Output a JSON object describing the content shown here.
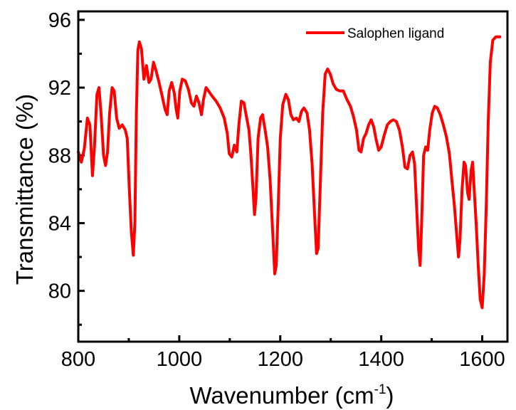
{
  "chart_data": {
    "type": "line",
    "title": "",
    "xlabel": "Wavenumber (cm",
    "xlabel_sup": "-1",
    "xlabel_close": ")",
    "ylabel": "Transmittance (%)",
    "xlim": [
      800,
      1650
    ],
    "ylim": [
      77,
      96.5
    ],
    "x_ticks": [
      800,
      1000,
      1200,
      1400,
      1600
    ],
    "y_ticks": [
      80,
      84,
      88,
      92,
      96
    ],
    "x_tick_labels": [
      "800",
      "1000",
      "1200",
      "1400",
      "1600"
    ],
    "y_tick_labels": [
      "80",
      "84",
      "88",
      "92",
      "96"
    ],
    "grid": false,
    "legend_position": "top-right",
    "series": [
      {
        "name": "Salophen ligand",
        "color": "#ff0000",
        "points": [
          [
            800,
            88.2
          ],
          [
            806,
            87.6
          ],
          [
            812,
            88.4
          ],
          [
            818,
            90.2
          ],
          [
            823,
            89.8
          ],
          [
            828,
            86.8
          ],
          [
            832,
            88.5
          ],
          [
            837,
            91.6
          ],
          [
            841,
            92.0
          ],
          [
            845,
            90.5
          ],
          [
            850,
            88.0
          ],
          [
            854,
            87.4
          ],
          [
            858,
            88.2
          ],
          [
            862,
            90.5
          ],
          [
            867,
            92.0
          ],
          [
            871,
            91.8
          ],
          [
            876,
            90.2
          ],
          [
            881,
            89.6
          ],
          [
            887,
            89.8
          ],
          [
            893,
            89.5
          ],
          [
            897,
            89.0
          ],
          [
            901,
            86.0
          ],
          [
            905,
            83.5
          ],
          [
            909,
            82.1
          ],
          [
            912,
            84.0
          ],
          [
            915,
            90.5
          ],
          [
            918,
            94.2
          ],
          [
            921,
            94.7
          ],
          [
            925,
            94.3
          ],
          [
            930,
            92.5
          ],
          [
            935,
            93.3
          ],
          [
            940,
            92.3
          ],
          [
            944,
            92.5
          ],
          [
            949,
            93.5
          ],
          [
            954,
            93.0
          ],
          [
            960,
            92.3
          ],
          [
            966,
            91.5
          ],
          [
            972,
            90.7
          ],
          [
            976,
            90.4
          ],
          [
            980,
            91.8
          ],
          [
            985,
            92.3
          ],
          [
            990,
            91.7
          ],
          [
            994,
            90.7
          ],
          [
            997,
            90.2
          ],
          [
            1001,
            91.8
          ],
          [
            1006,
            92.5
          ],
          [
            1012,
            92.4
          ],
          [
            1018,
            91.9
          ],
          [
            1024,
            91.1
          ],
          [
            1029,
            90.9
          ],
          [
            1034,
            91.5
          ],
          [
            1039,
            91.1
          ],
          [
            1044,
            90.4
          ],
          [
            1048,
            91.3
          ],
          [
            1053,
            92.0
          ],
          [
            1058,
            91.8
          ],
          [
            1065,
            91.5
          ],
          [
            1073,
            91.2
          ],
          [
            1081,
            90.8
          ],
          [
            1089,
            90.2
          ],
          [
            1095,
            89.3
          ],
          [
            1099,
            88.1
          ],
          [
            1104,
            87.9
          ],
          [
            1109,
            88.6
          ],
          [
            1114,
            88.2
          ],
          [
            1118,
            89.8
          ],
          [
            1123,
            91.2
          ],
          [
            1128,
            91.1
          ],
          [
            1133,
            90.3
          ],
          [
            1138,
            89.5
          ],
          [
            1142,
            88.0
          ],
          [
            1146,
            86.0
          ],
          [
            1149,
            84.5
          ],
          [
            1152,
            85.5
          ],
          [
            1156,
            89.0
          ],
          [
            1161,
            90.2
          ],
          [
            1165,
            90.4
          ],
          [
            1170,
            89.5
          ],
          [
            1175,
            88.5
          ],
          [
            1180,
            86.5
          ],
          [
            1185,
            83.5
          ],
          [
            1189,
            81.0
          ],
          [
            1192,
            81.5
          ],
          [
            1196,
            85.0
          ],
          [
            1200,
            89.0
          ],
          [
            1205,
            91.0
          ],
          [
            1211,
            91.6
          ],
          [
            1216,
            91.3
          ],
          [
            1221,
            90.4
          ],
          [
            1226,
            90.1
          ],
          [
            1232,
            90.2
          ],
          [
            1237,
            90.0
          ],
          [
            1242,
            90.6
          ],
          [
            1247,
            90.8
          ],
          [
            1253,
            90.5
          ],
          [
            1258,
            89.5
          ],
          [
            1263,
            87.5
          ],
          [
            1268,
            84.5
          ],
          [
            1272,
            82.2
          ],
          [
            1275,
            82.5
          ],
          [
            1279,
            86.0
          ],
          [
            1284,
            90.5
          ],
          [
            1289,
            92.8
          ],
          [
            1294,
            93.1
          ],
          [
            1299,
            92.8
          ],
          [
            1305,
            92.2
          ],
          [
            1311,
            91.9
          ],
          [
            1318,
            91.8
          ],
          [
            1325,
            91.8
          ],
          [
            1332,
            91.3
          ],
          [
            1339,
            90.9
          ],
          [
            1345,
            90.3
          ],
          [
            1351,
            89.5
          ],
          [
            1356,
            88.3
          ],
          [
            1360,
            88.2
          ],
          [
            1365,
            89.0
          ],
          [
            1370,
            89.3
          ],
          [
            1375,
            89.8
          ],
          [
            1380,
            90.1
          ],
          [
            1385,
            89.7
          ],
          [
            1390,
            88.9
          ],
          [
            1395,
            88.3
          ],
          [
            1400,
            88.5
          ],
          [
            1406,
            89.2
          ],
          [
            1412,
            89.8
          ],
          [
            1418,
            90.0
          ],
          [
            1424,
            90.1
          ],
          [
            1430,
            90.0
          ],
          [
            1436,
            89.5
          ],
          [
            1442,
            88.5
          ],
          [
            1447,
            87.3
          ],
          [
            1452,
            87.2
          ],
          [
            1457,
            88.0
          ],
          [
            1462,
            88.2
          ],
          [
            1466,
            87.5
          ],
          [
            1470,
            85.0
          ],
          [
            1474,
            82.5
          ],
          [
            1477,
            81.5
          ],
          [
            1480,
            84.0
          ],
          [
            1484,
            88.0
          ],
          [
            1488,
            88.5
          ],
          [
            1492,
            88.3
          ],
          [
            1496,
            89.5
          ],
          [
            1501,
            90.5
          ],
          [
            1506,
            90.9
          ],
          [
            1511,
            90.8
          ],
          [
            1517,
            90.4
          ],
          [
            1523,
            89.8
          ],
          [
            1529,
            89.1
          ],
          [
            1535,
            88.1
          ],
          [
            1540,
            86.5
          ],
          [
            1545,
            85.0
          ],
          [
            1549,
            83.5
          ],
          [
            1553,
            82.0
          ],
          [
            1556,
            83.0
          ],
          [
            1560,
            86.0
          ],
          [
            1564,
            87.6
          ],
          [
            1567,
            87.4
          ],
          [
            1571,
            85.8
          ],
          [
            1574,
            85.4
          ],
          [
            1578,
            87.1
          ],
          [
            1581,
            87.6
          ],
          [
            1584,
            86.0
          ],
          [
            1588,
            84.0
          ],
          [
            1592,
            81.5
          ],
          [
            1596,
            79.5
          ],
          [
            1600,
            79.0
          ],
          [
            1604,
            81.0
          ],
          [
            1608,
            85.0
          ],
          [
            1612,
            90.0
          ],
          [
            1616,
            93.5
          ],
          [
            1621,
            94.8
          ],
          [
            1627,
            95.0
          ],
          [
            1635,
            95.0
          ]
        ]
      }
    ]
  }
}
